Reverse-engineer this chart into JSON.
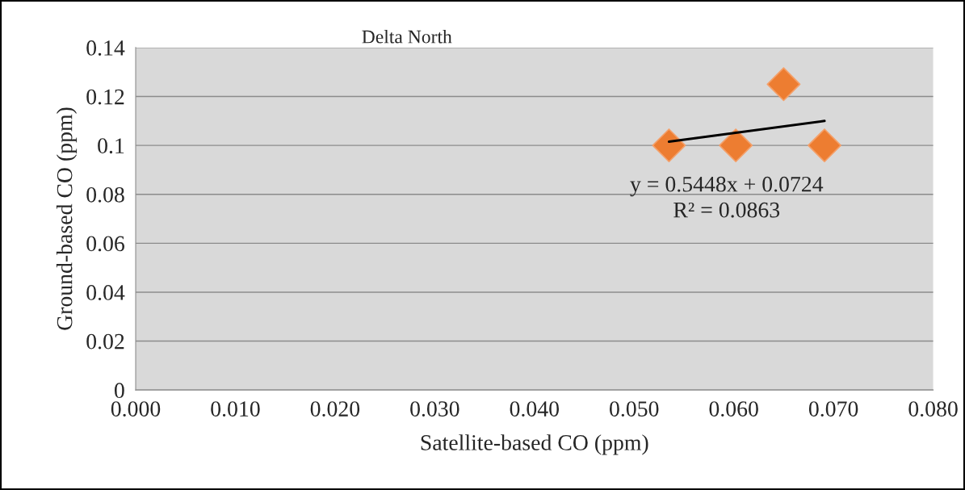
{
  "chart_data": {
    "type": "scatter",
    "title": "Delta North",
    "xlabel": "Satellite-based CO (ppm)",
    "ylabel": "Ground-based CO (ppm)",
    "series": [
      {
        "color": "#ed7d31",
        "marker": "diamond",
        "x": [
          0.0535,
          0.0602,
          0.065,
          0.0691
        ],
        "values": [
          0.1,
          0.1,
          0.125,
          0.1
        ]
      },
      {
        "type": "line",
        "color": "#000000",
        "marker": "none",
        "line_style": "solid",
        "x": [
          0.0535,
          0.0691
        ],
        "values": [
          0.1015,
          0.11
        ]
      }
    ],
    "annotations": [
      "y = 0.5448x + 0.0724",
      "R² = 0.0863"
    ],
    "xlim": [
      0,
      0.08
    ],
    "xticks": [
      {
        "value": 0,
        "label": "0.000"
      },
      {
        "value": 0.01,
        "label": "0.010"
      },
      {
        "value": 0.02,
        "label": "0.020"
      },
      {
        "value": 0.03,
        "label": "0.030"
      },
      {
        "value": 0.04,
        "label": "0.040"
      },
      {
        "value": 0.05,
        "label": "0.050"
      },
      {
        "value": 0.06,
        "label": "0.060"
      },
      {
        "value": 0.07,
        "label": "0.070"
      },
      {
        "value": 0.08,
        "label": "0.080"
      }
    ],
    "ylim": [
      0,
      0.14
    ],
    "yticks": [
      0,
      0.02,
      0.04,
      0.06,
      0.08,
      0.1,
      0.12,
      0.14
    ],
    "grid": "y"
  }
}
